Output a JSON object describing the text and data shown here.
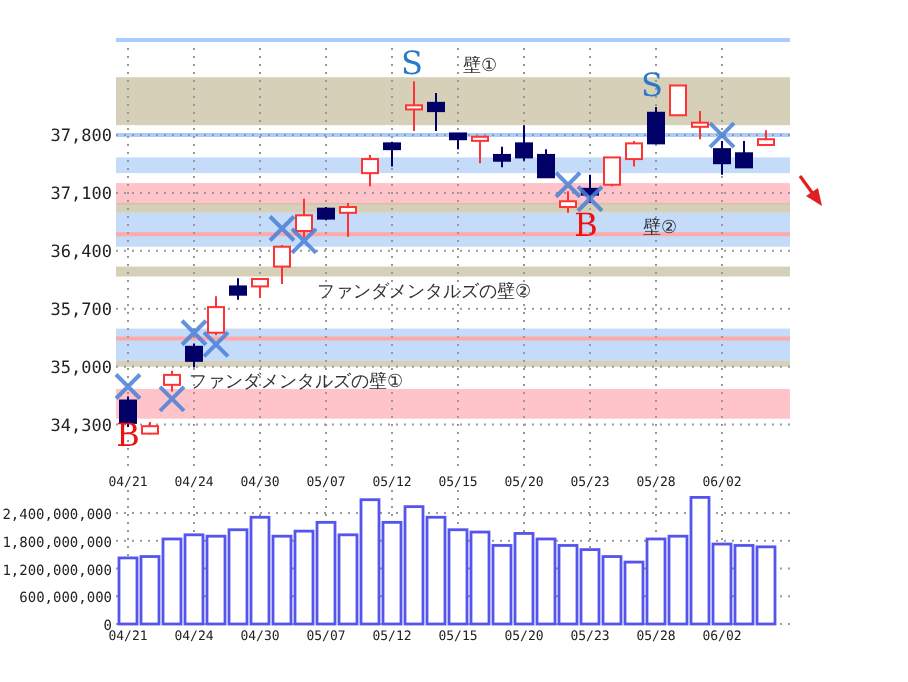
{
  "chart_data": [
    {
      "type": "candlestick",
      "categories": [
        "04/21",
        null,
        null,
        "04/24",
        null,
        null,
        "04/30",
        null,
        null,
        "05/07",
        null,
        null,
        "05/12",
        null,
        null,
        "05/15",
        null,
        null,
        "05/20",
        null,
        null,
        "05/23",
        null,
        null,
        "05/28",
        null,
        null,
        "06/02",
        null,
        null
      ],
      "ohlc": [
        [
          34590,
          34640,
          34270,
          34320
        ],
        [
          34190,
          34330,
          34180,
          34280
        ],
        [
          34780,
          34950,
          34700,
          34900
        ],
        [
          35240,
          35280,
          34990,
          35070
        ],
        [
          35410,
          35850,
          35380,
          35720
        ],
        [
          35970,
          36070,
          35810,
          35870
        ],
        [
          35970,
          36060,
          35830,
          36060
        ],
        [
          36210,
          36470,
          36000,
          36450
        ],
        [
          36640,
          37030,
          36560,
          36830
        ],
        [
          36910,
          36930,
          36770,
          36790
        ],
        [
          36860,
          36980,
          36570,
          36930
        ],
        [
          37340,
          37560,
          37180,
          37510
        ],
        [
          37700,
          37720,
          37420,
          37630
        ],
        [
          38110,
          38450,
          37850,
          38160
        ],
        [
          38190,
          38310,
          37850,
          38090
        ],
        [
          37820,
          37820,
          37630,
          37750
        ],
        [
          37730,
          37780,
          37460,
          37780
        ],
        [
          37560,
          37660,
          37410,
          37490
        ],
        [
          37700,
          37920,
          37490,
          37530
        ],
        [
          37560,
          37630,
          37290,
          37290
        ],
        [
          36930,
          37120,
          36860,
          37000
        ],
        [
          37150,
          37320,
          36980,
          37080
        ],
        [
          37200,
          37530,
          37180,
          37530
        ],
        [
          37510,
          37730,
          37420,
          37700
        ],
        [
          38070,
          38140,
          37700,
          37700
        ],
        [
          38040,
          38400,
          38040,
          38400
        ],
        [
          37900,
          38090,
          37750,
          37950
        ],
        [
          37630,
          37730,
          37320,
          37460
        ],
        [
          37580,
          37730,
          37410,
          37410
        ],
        [
          37680,
          37860,
          37680,
          37750
        ]
      ],
      "colors": [
        "#000066",
        "#ff3333",
        "#ff3333",
        "#000066",
        "#ff3333",
        "#000066",
        "#ff3333",
        "#ff3333",
        "#ff3333",
        "#000066",
        "#ff3333",
        "#ff3333",
        "#000066",
        "#ff3333",
        "#000066",
        "#000066",
        "#ff3333",
        "#000066",
        "#000066",
        "#000066",
        "#ff3333",
        "#000066",
        "#ff3333",
        "#ff3333",
        "#000066",
        "#ff3333",
        "#ff3333",
        "#000066",
        "#000066",
        "#ff3333"
      ],
      "ylim": [
        33750,
        38950
      ],
      "yticks": [
        {
          "value": 34300,
          "label": "34,300"
        },
        {
          "value": 35000,
          "label": "35,000"
        },
        {
          "value": 35700,
          "label": "35,700"
        },
        {
          "value": 36400,
          "label": "36,400"
        },
        {
          "value": 37100,
          "label": "37,100"
        },
        {
          "value": 37800,
          "label": "37,800"
        }
      ],
      "grid": true,
      "bands": [
        {
          "axis": "y",
          "from": 37920,
          "to": 38500,
          "label": "壁①",
          "color": "#c8c0a0"
        },
        {
          "axis": "y",
          "from": 37340,
          "to": 37530,
          "color": "#b0d0f8"
        },
        {
          "axis": "y",
          "from": 36960,
          "to": 37220,
          "color": "#ffb0b8"
        },
        {
          "axis": "y",
          "from": 36860,
          "to": 36980,
          "label": "壁②",
          "color": "#c8c0a0"
        },
        {
          "axis": "y",
          "from": 36450,
          "to": 36860,
          "color": "#b0d0f8"
        },
        {
          "axis": "y",
          "from": 36090,
          "to": 36210,
          "label": "ファンダメンタルズの壁②",
          "color": "#c8c0a0"
        },
        {
          "axis": "y",
          "from": 35070,
          "to": 35460,
          "color": "#b0d0f8"
        },
        {
          "axis": "y",
          "from": 35000,
          "to": 35070,
          "label": "ファンダメンタルズの壁①",
          "color": "#c8c0a0"
        },
        {
          "axis": "y",
          "from": 34370,
          "to": 34730,
          "color": "#ffb0b8"
        }
      ],
      "ref_lines": [
        {
          "axis": "y",
          "value": 37800,
          "color": "#aaccff"
        },
        {
          "axis": "y",
          "value": 36600,
          "color": "#ffaaaa"
        },
        {
          "axis": "y",
          "value": 35340,
          "color": "#ffaaaa"
        }
      ],
      "series": [
        {
          "type": "scatter",
          "marker": "cross",
          "color": "#4a7fd6",
          "values": [
            34760,
            null,
            34610,
            35410,
            35270,
            null,
            null,
            36670,
            36520,
            null,
            null,
            null,
            null,
            null,
            null,
            null,
            null,
            null,
            null,
            null,
            37200,
            37030,
            null,
            null,
            null,
            null,
            null,
            37800,
            null,
            null
          ]
        }
      ],
      "annotations": [
        "S",
        "S",
        "B",
        "B"
      ]
    },
    {
      "type": "bar",
      "categories": [
        "04/21",
        null,
        null,
        "04/24",
        null,
        null,
        "04/30",
        null,
        null,
        "05/07",
        null,
        null,
        "05/12",
        null,
        null,
        "05/15",
        null,
        null,
        "05/20",
        null,
        null,
        "05/23",
        null,
        null,
        "05/28",
        null,
        null,
        "06/02",
        null,
        null
      ],
      "values": [
        1430000000,
        1460000000,
        1840000000,
        1930000000,
        1900000000,
        2040000000,
        2310000000,
        1900000000,
        2010000000,
        2200000000,
        1930000000,
        2690000000,
        2200000000,
        2540000000,
        2310000000,
        2040000000,
        1990000000,
        1700000000,
        1960000000,
        1840000000,
        1700000000,
        1610000000,
        1460000000,
        1340000000,
        1840000000,
        1900000000,
        2740000000,
        1730000000,
        1700000000,
        1670000000
      ],
      "color": "#5555ee",
      "ylim": [
        0,
        2900000000
      ],
      "yticks": [
        0,
        {
          "value": 600000000,
          "label": "600,000,000"
        },
        {
          "value": 1200000000,
          "label": "1,200,000,000"
        },
        {
          "value": 1800000000,
          "label": "1,800,000,000"
        },
        {
          "value": 2400000000,
          "label": "2,400,000,000"
        }
      ],
      "grid": true
    }
  ]
}
